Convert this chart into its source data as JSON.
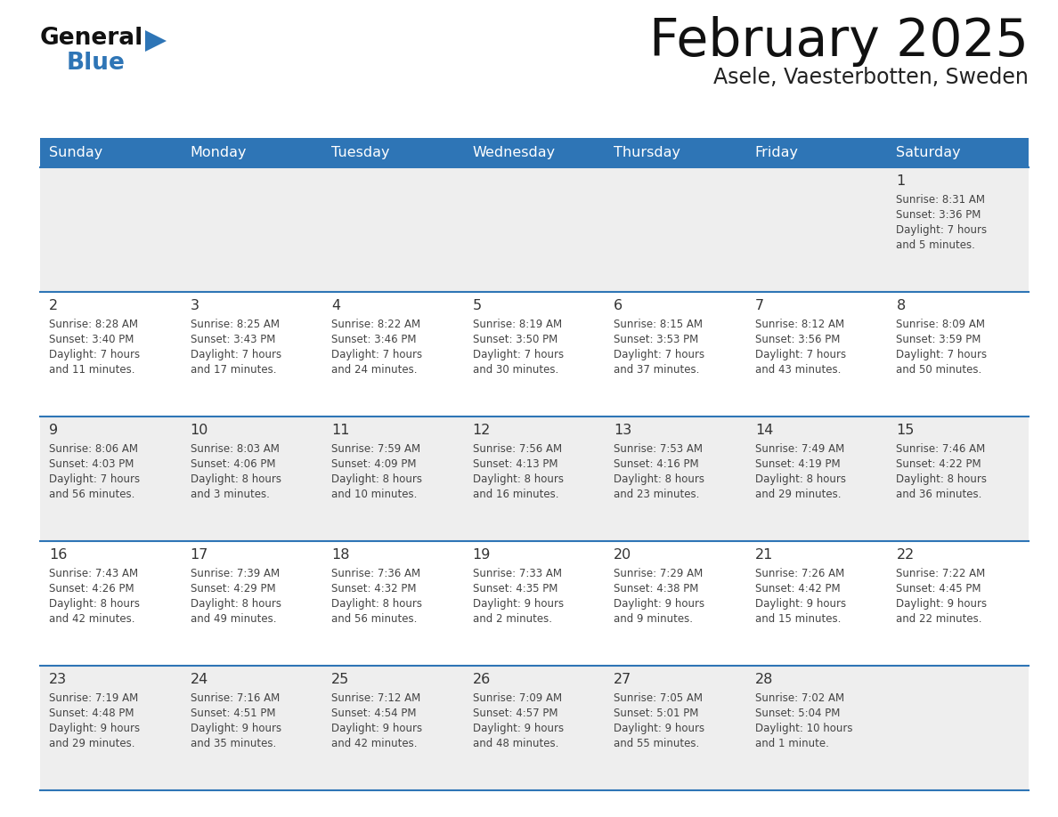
{
  "title": "February 2025",
  "subtitle": "Asele, Vaesterbotten, Sweden",
  "header_color": "#2E75B6",
  "header_text_color": "#FFFFFF",
  "weekdays": [
    "Sunday",
    "Monday",
    "Tuesday",
    "Wednesday",
    "Thursday",
    "Friday",
    "Saturday"
  ],
  "bg_color": "#FFFFFF",
  "alt_row_color": "#EEEEEE",
  "border_color": "#2E75B6",
  "day_num_color": "#333333",
  "text_color": "#444444",
  "logo_general_color": "#111111",
  "logo_blue_color": "#2E75B6",
  "calendar": [
    [
      null,
      null,
      null,
      null,
      null,
      null,
      {
        "day": 1,
        "sunrise": "8:31 AM",
        "sunset": "3:36 PM",
        "daylight": "7 hours\nand 5 minutes."
      }
    ],
    [
      {
        "day": 2,
        "sunrise": "8:28 AM",
        "sunset": "3:40 PM",
        "daylight": "7 hours\nand 11 minutes."
      },
      {
        "day": 3,
        "sunrise": "8:25 AM",
        "sunset": "3:43 PM",
        "daylight": "7 hours\nand 17 minutes."
      },
      {
        "day": 4,
        "sunrise": "8:22 AM",
        "sunset": "3:46 PM",
        "daylight": "7 hours\nand 24 minutes."
      },
      {
        "day": 5,
        "sunrise": "8:19 AM",
        "sunset": "3:50 PM",
        "daylight": "7 hours\nand 30 minutes."
      },
      {
        "day": 6,
        "sunrise": "8:15 AM",
        "sunset": "3:53 PM",
        "daylight": "7 hours\nand 37 minutes."
      },
      {
        "day": 7,
        "sunrise": "8:12 AM",
        "sunset": "3:56 PM",
        "daylight": "7 hours\nand 43 minutes."
      },
      {
        "day": 8,
        "sunrise": "8:09 AM",
        "sunset": "3:59 PM",
        "daylight": "7 hours\nand 50 minutes."
      }
    ],
    [
      {
        "day": 9,
        "sunrise": "8:06 AM",
        "sunset": "4:03 PM",
        "daylight": "7 hours\nand 56 minutes."
      },
      {
        "day": 10,
        "sunrise": "8:03 AM",
        "sunset": "4:06 PM",
        "daylight": "8 hours\nand 3 minutes."
      },
      {
        "day": 11,
        "sunrise": "7:59 AM",
        "sunset": "4:09 PM",
        "daylight": "8 hours\nand 10 minutes."
      },
      {
        "day": 12,
        "sunrise": "7:56 AM",
        "sunset": "4:13 PM",
        "daylight": "8 hours\nand 16 minutes."
      },
      {
        "day": 13,
        "sunrise": "7:53 AM",
        "sunset": "4:16 PM",
        "daylight": "8 hours\nand 23 minutes."
      },
      {
        "day": 14,
        "sunrise": "7:49 AM",
        "sunset": "4:19 PM",
        "daylight": "8 hours\nand 29 minutes."
      },
      {
        "day": 15,
        "sunrise": "7:46 AM",
        "sunset": "4:22 PM",
        "daylight": "8 hours\nand 36 minutes."
      }
    ],
    [
      {
        "day": 16,
        "sunrise": "7:43 AM",
        "sunset": "4:26 PM",
        "daylight": "8 hours\nand 42 minutes."
      },
      {
        "day": 17,
        "sunrise": "7:39 AM",
        "sunset": "4:29 PM",
        "daylight": "8 hours\nand 49 minutes."
      },
      {
        "day": 18,
        "sunrise": "7:36 AM",
        "sunset": "4:32 PM",
        "daylight": "8 hours\nand 56 minutes."
      },
      {
        "day": 19,
        "sunrise": "7:33 AM",
        "sunset": "4:35 PM",
        "daylight": "9 hours\nand 2 minutes."
      },
      {
        "day": 20,
        "sunrise": "7:29 AM",
        "sunset": "4:38 PM",
        "daylight": "9 hours\nand 9 minutes."
      },
      {
        "day": 21,
        "sunrise": "7:26 AM",
        "sunset": "4:42 PM",
        "daylight": "9 hours\nand 15 minutes."
      },
      {
        "day": 22,
        "sunrise": "7:22 AM",
        "sunset": "4:45 PM",
        "daylight": "9 hours\nand 22 minutes."
      }
    ],
    [
      {
        "day": 23,
        "sunrise": "7:19 AM",
        "sunset": "4:48 PM",
        "daylight": "9 hours\nand 29 minutes."
      },
      {
        "day": 24,
        "sunrise": "7:16 AM",
        "sunset": "4:51 PM",
        "daylight": "9 hours\nand 35 minutes."
      },
      {
        "day": 25,
        "sunrise": "7:12 AM",
        "sunset": "4:54 PM",
        "daylight": "9 hours\nand 42 minutes."
      },
      {
        "day": 26,
        "sunrise": "7:09 AM",
        "sunset": "4:57 PM",
        "daylight": "9 hours\nand 48 minutes."
      },
      {
        "day": 27,
        "sunrise": "7:05 AM",
        "sunset": "5:01 PM",
        "daylight": "9 hours\nand 55 minutes."
      },
      {
        "day": 28,
        "sunrise": "7:02 AM",
        "sunset": "5:04 PM",
        "daylight": "10 hours\nand 1 minute."
      },
      null
    ]
  ]
}
